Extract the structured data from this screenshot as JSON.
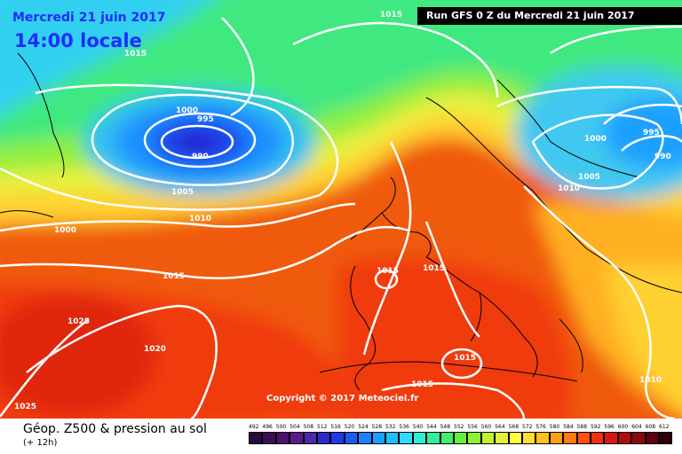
{
  "header": {
    "date_label": "Mercredi 21 juin 2017",
    "time_label": "14:00 locale",
    "run_label": "Run GFS 0 Z du Mercredi 21 juin 2017"
  },
  "copyright": "Copyright © 2017 Meteociel.fr",
  "legend": {
    "title": "Géop. Z500 & pression au sol",
    "subtitle": "(+ 12h)",
    "scale_values": [
      "492",
      "496",
      "500",
      "504",
      "508",
      "512",
      "516",
      "520",
      "524",
      "528",
      "532",
      "536",
      "540",
      "544",
      "548",
      "552",
      "556",
      "560",
      "564",
      "568",
      "572",
      "576",
      "580",
      "584",
      "588",
      "592",
      "596",
      "600",
      "604",
      "608",
      "612"
    ],
    "scale_colors": [
      "#2a0a3a",
      "#3a0d55",
      "#4b1270",
      "#5a1a8c",
      "#4a2aa8",
      "#2a2ac8",
      "#1a3ce0",
      "#1a5cf0",
      "#1a80ff",
      "#1aa0ff",
      "#20c0ff",
      "#30dcff",
      "#30ecd0",
      "#30f0a0",
      "#40f070",
      "#60f040",
      "#90f030",
      "#c0f030",
      "#e0f040",
      "#ffff40",
      "#ffe030",
      "#ffc020",
      "#ffa010",
      "#ff7a10",
      "#ff5010",
      "#f03010",
      "#d81810",
      "#b00c10",
      "#8c0810",
      "#600010",
      "#300008"
    ]
  },
  "isobar_labels": [
    {
      "text": "1015"
    },
    {
      "text": "1015"
    },
    {
      "text": "1000"
    },
    {
      "text": "995"
    },
    {
      "text": "990"
    },
    {
      "text": "1005"
    },
    {
      "text": "1010"
    },
    {
      "text": "1000"
    },
    {
      "text": "1015"
    },
    {
      "text": "1025"
    },
    {
      "text": "1020"
    },
    {
      "text": "1025"
    },
    {
      "text": "1015"
    },
    {
      "text": "1015"
    },
    {
      "text": "1015"
    },
    {
      "text": "1015"
    },
    {
      "text": "1000"
    },
    {
      "text": "995"
    },
    {
      "text": "990"
    },
    {
      "text": "1005"
    },
    {
      "text": "1010"
    },
    {
      "text": "1010"
    }
  ]
}
